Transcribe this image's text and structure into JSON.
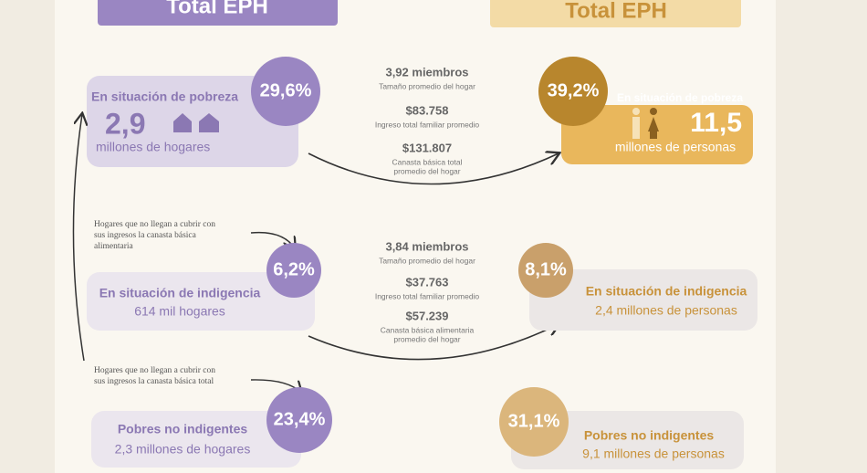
{
  "header": {
    "left_title": "Total EPH",
    "right_title": "Total EPH"
  },
  "left": {
    "pobreza": {
      "percent": "29,6%",
      "label": "En situación de pobreza",
      "number": "2,9",
      "unit": "millones de hogares"
    },
    "note_alimentaria": "Hogares que no llegan a cubrir con sus ingresos la canasta básica alimentaria",
    "indigencia": {
      "percent": "6,2%",
      "label": "En situación de indigencia",
      "unit": "614 mil hogares"
    },
    "note_total": "Hogares que no llegan a cubrir con sus ingresos la canasta básica total",
    "no_indigentes": {
      "percent": "23,4%",
      "label": "Pobres no indigentes",
      "unit": "2,3 millones de hogares"
    }
  },
  "middle": {
    "pobreza": [
      {
        "value": "3,92 miembros",
        "caption": [
          "Tamaño promedio del hogar"
        ]
      },
      {
        "value": "$83.758",
        "caption": [
          "Ingreso total familiar promedio"
        ]
      },
      {
        "value": "$131.807",
        "caption": [
          "Canasta básica total",
          "promedio del hogar"
        ]
      }
    ],
    "indigencia": [
      {
        "value": "3,84 miembros",
        "caption": [
          "Tamaño promedio del hogar"
        ]
      },
      {
        "value": "$37.763",
        "caption": [
          "Ingreso total familiar promedio"
        ]
      },
      {
        "value": "$57.239",
        "caption": [
          "Canasta básica alimentaria",
          "promedio del hogar"
        ]
      }
    ]
  },
  "right": {
    "pobreza": {
      "percent": "39,2%",
      "label": "En situación de pobreza",
      "number": "11,5",
      "unit": "millones de personas"
    },
    "indigencia": {
      "percent": "8,1%",
      "label": "En situación de indigencia",
      "unit": "2,4 millones de personas"
    },
    "no_indigentes": {
      "percent": "31,1%",
      "label": "Pobres no indigentes",
      "unit": "9,1 millones de personas"
    }
  }
}
